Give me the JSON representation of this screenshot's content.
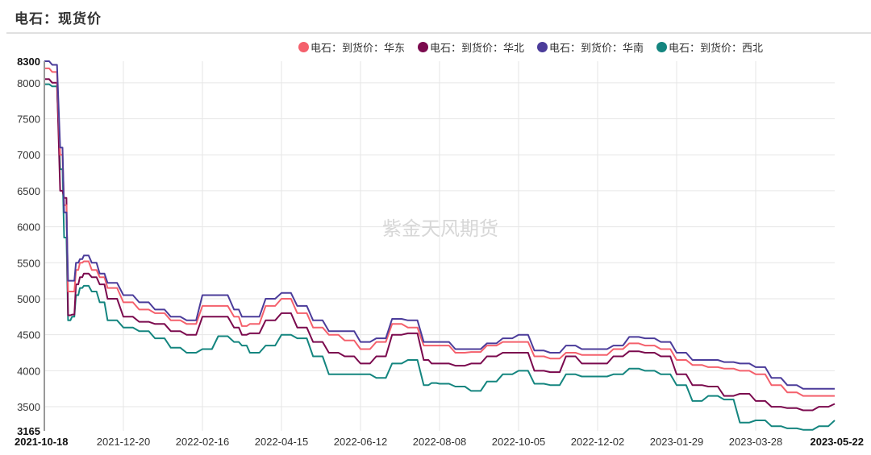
{
  "title": "电石：现货价",
  "watermark": "紫金天风期货",
  "colors": {
    "east": "#f4606c",
    "north": "#7b0a4e",
    "south": "#4b3c9a",
    "northwest": "#14857f",
    "grid": "#e6e6e6",
    "axis": "#999999"
  },
  "legend": [
    {
      "label": "电石：到货价：华东",
      "color": "#f4606c"
    },
    {
      "label": "电石：到货价：华北",
      "color": "#7b0a4e"
    },
    {
      "label": "电石：到货价：华南",
      "color": "#4b3c9a"
    },
    {
      "label": "电石：到货价：西北",
      "color": "#14857f"
    }
  ],
  "chart_data": {
    "type": "line",
    "title": "电石：现货价",
    "xlabel": "",
    "ylabel": "",
    "ylim": [
      3165,
      8300
    ],
    "yticks": [
      3165,
      3500,
      4000,
      4500,
      5000,
      5500,
      6000,
      6500,
      7000,
      7500,
      8000,
      8300
    ],
    "xlim": [
      "2021-10-18",
      "2023-05-22"
    ],
    "xticks": [
      "2021-10-18",
      "2021-12-20",
      "2022-02-16",
      "2022-04-15",
      "2022-06-12",
      "2022-08-08",
      "2022-10-05",
      "2022-12-02",
      "2023-01-29",
      "2023-03-28",
      "2023-05-22"
    ],
    "grid": true,
    "legend_position": "top-right",
    "x": [
      0,
      0.01,
      0.02,
      0.025,
      0.03,
      0.035,
      0.04,
      0.045,
      0.05,
      0.06,
      0.07,
      0.08,
      0.1,
      0.12,
      0.14,
      0.16,
      0.18,
      0.2,
      0.22,
      0.24,
      0.25,
      0.26,
      0.28,
      0.3,
      0.32,
      0.34,
      0.36,
      0.38,
      0.4,
      0.42,
      0.44,
      0.46,
      0.48,
      0.49,
      0.5,
      0.52,
      0.54,
      0.56,
      0.58,
      0.6,
      0.62,
      0.64,
      0.66,
      0.68,
      0.7,
      0.72,
      0.74,
      0.76,
      0.78,
      0.8,
      0.82,
      0.84,
      0.86,
      0.88,
      0.9,
      0.92,
      0.94,
      0.96,
      0.98,
      1.0
    ],
    "series": [
      {
        "name": "电石：到货价：华东",
        "values": [
          8200,
          8150,
          7000,
          6300,
          5100,
          5100,
          5400,
          5500,
          5520,
          5400,
          5300,
          5150,
          4950,
          4850,
          4800,
          4700,
          4650,
          4900,
          4900,
          4750,
          4620,
          4650,
          4900,
          5000,
          4800,
          4600,
          4500,
          4420,
          4300,
          4400,
          4650,
          4600,
          4350,
          4350,
          4350,
          4250,
          4260,
          4350,
          4400,
          4400,
          4200,
          4170,
          4250,
          4220,
          4220,
          4300,
          4380,
          4350,
          4300,
          4150,
          4080,
          4050,
          4030,
          4000,
          3950,
          3800,
          3700,
          3650,
          3650,
          3650
        ]
      },
      {
        "name": "电石：到货价：华北",
        "values": [
          8050,
          8000,
          6500,
          6400,
          4770,
          4780,
          5200,
          5300,
          5350,
          5300,
          5200,
          5000,
          4750,
          4680,
          4650,
          4550,
          4500,
          4750,
          4750,
          4600,
          4500,
          4520,
          4700,
          4800,
          4600,
          4400,
          4250,
          4200,
          4100,
          4200,
          4500,
          4520,
          4150,
          4100,
          4100,
          4070,
          4100,
          4200,
          4250,
          4250,
          4000,
          3980,
          4200,
          4100,
          4100,
          4200,
          4270,
          4250,
          4200,
          3950,
          3800,
          3780,
          3650,
          3680,
          3580,
          3500,
          3480,
          3450,
          3500,
          3540
        ]
      },
      {
        "name": "电石：到货价：华南",
        "values": [
          8300,
          8250,
          7100,
          6200,
          5250,
          5250,
          5500,
          5550,
          5600,
          5500,
          5350,
          5220,
          5050,
          4950,
          4850,
          4750,
          4700,
          5050,
          5050,
          4850,
          4750,
          4750,
          5000,
          5080,
          4900,
          4700,
          4550,
          4550,
          4400,
          4450,
          4720,
          4700,
          4400,
          4400,
          4400,
          4300,
          4300,
          4380,
          4450,
          4500,
          4280,
          4250,
          4350,
          4300,
          4300,
          4350,
          4470,
          4450,
          4400,
          4250,
          4150,
          4150,
          4120,
          4100,
          4050,
          3900,
          3800,
          3750,
          3750,
          3750
        ]
      },
      {
        "name": "电石：到货价：西北",
        "values": [
          7980,
          7950,
          6800,
          5850,
          4700,
          4750,
          5050,
          5150,
          5180,
          5100,
          4950,
          4700,
          4600,
          4550,
          4450,
          4320,
          4250,
          4300,
          4480,
          4400,
          4350,
          4250,
          4350,
          4500,
          4450,
          4200,
          3950,
          3950,
          3950,
          3900,
          4100,
          4150,
          3800,
          3830,
          3820,
          3780,
          3720,
          3850,
          3950,
          4000,
          3820,
          3800,
          3950,
          3920,
          3920,
          3950,
          4030,
          4000,
          3950,
          3800,
          3580,
          3650,
          3600,
          3280,
          3310,
          3230,
          3200,
          3180,
          3230,
          3310
        ]
      }
    ]
  }
}
